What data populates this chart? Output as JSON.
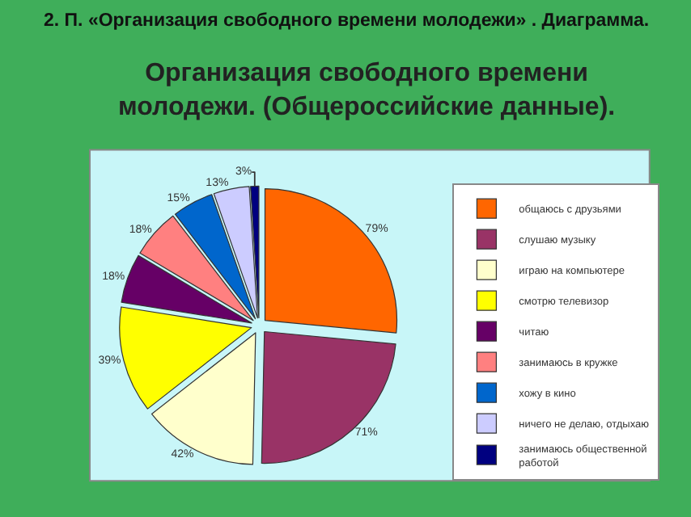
{
  "chart_data": {
    "type": "pie",
    "title": "2. П. «Организация свободного времени молодежи» . Диаграмма.",
    "subtitle": "Организация свободного времени молодежи. (Общероссийские данные).",
    "categories": [
      "общаюсь с друзьями",
      "слушаю музыку",
      "играю на компьютере",
      "смотрю телевизор",
      "читаю",
      "занимаюсь в кружке",
      "хожу в кино",
      "ничего не делаю, отдыхаю",
      "занимаюсь общественной работой"
    ],
    "values": [
      79,
      71,
      42,
      39,
      18,
      18,
      15,
      13,
      3
    ],
    "value_labels": [
      "79%",
      "71%",
      "42%",
      "39%",
      "18%",
      "18%",
      "15%",
      "13%",
      "3%"
    ],
    "colors": [
      "#ff6600",
      "#993366",
      "#ffffcc",
      "#ffff00",
      "#660066",
      "#ff8080",
      "#0066cc",
      "#ccccff",
      "#000080"
    ],
    "legend": "right"
  }
}
